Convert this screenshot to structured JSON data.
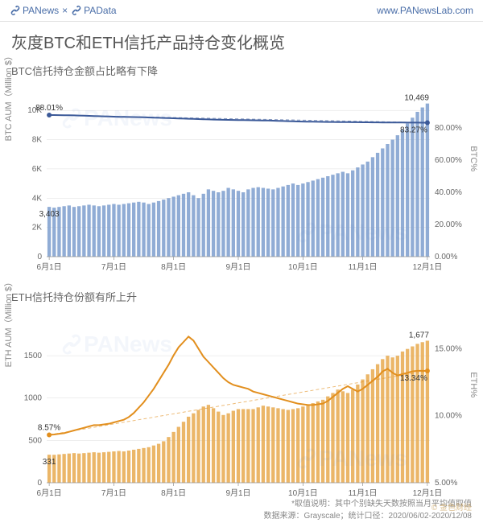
{
  "header": {
    "brand1": "PANews",
    "brand_sep": "×",
    "brand2": "PAData",
    "url": "www.PANewsLab.com"
  },
  "title": "灰度BTC和ETH信托产品持仓变化概览",
  "watermark_text": "PANews",
  "btc_chart": {
    "subtitle": "BTC信托持仓金额占比略有下降",
    "y_label": "BTC AUM（Million $）",
    "y2_label": "BTC%",
    "type": "bar+line",
    "bar_color": "#7d9ece",
    "line_color": "#3b5998",
    "trend_color": "#3b5998",
    "grid_color": "#dddddd",
    "text_color": "#666666",
    "y_ticks": [
      0,
      "2K",
      "4K",
      "6K",
      "8K",
      "10K"
    ],
    "y_max": 11000,
    "y2_ticks": [
      "0.00%",
      "20.00%",
      "40.00%",
      "60.00%",
      "80.00%"
    ],
    "y2_max": 100,
    "x_ticks": [
      "6月1日",
      "7月1日",
      "8月1日",
      "9月1日",
      "10月1日",
      "11月1日",
      "12月1日"
    ],
    "start_label_bar": "3,403",
    "end_label_bar": "10,469",
    "start_label_line": "88.01%",
    "end_label_line": "83.27%",
    "bars": [
      3403,
      3350,
      3400,
      3450,
      3500,
      3400,
      3450,
      3500,
      3550,
      3500,
      3450,
      3500,
      3550,
      3600,
      3550,
      3600,
      3650,
      3700,
      3750,
      3700,
      3600,
      3700,
      3800,
      3900,
      4000,
      4100,
      4200,
      4300,
      4400,
      4200,
      4000,
      4300,
      4600,
      4500,
      4400,
      4500,
      4700,
      4600,
      4500,
      4400,
      4600,
      4700,
      4750,
      4700,
      4650,
      4600,
      4700,
      4800,
      4900,
      5000,
      4900,
      5000,
      5100,
      5200,
      5300,
      5400,
      5500,
      5600,
      5700,
      5800,
      5700,
      5900,
      6100,
      6300,
      6500,
      6800,
      7100,
      7400,
      7700,
      8000,
      8300,
      8700,
      9100,
      9500,
      9900,
      10200,
      10469
    ],
    "line": [
      88.01,
      88.0,
      87.95,
      87.9,
      87.85,
      87.8,
      87.7,
      87.6,
      87.5,
      87.4,
      87.3,
      87.2,
      87.1,
      87.0,
      86.9,
      86.85,
      86.8,
      86.75,
      86.7,
      86.6,
      86.5,
      86.4,
      86.3,
      86.2,
      86.1,
      86.0,
      85.9,
      85.8,
      85.7,
      85.6,
      85.5,
      85.4,
      85.3,
      85.2,
      85.1,
      85.05,
      85.0,
      84.95,
      84.9,
      84.85,
      84.8,
      84.75,
      84.7,
      84.65,
      84.6,
      84.5,
      84.4,
      84.3,
      84.2,
      84.1,
      84.0,
      83.95,
      83.9,
      83.85,
      83.8,
      83.75,
      83.7,
      83.7,
      83.65,
      83.6,
      83.6,
      83.55,
      83.55,
      83.5,
      83.5,
      83.45,
      83.45,
      83.4,
      83.4,
      83.4,
      83.35,
      83.35,
      83.3,
      83.3,
      83.3,
      83.28,
      83.27
    ]
  },
  "eth_chart": {
    "subtitle": "ETH信托持仓份额有所上升",
    "y_label": "ETH AUM（Million $）",
    "y2_label": "ETH%",
    "type": "bar+line",
    "bar_color": "#e8a94d",
    "line_color": "#e28f1e",
    "trend_color": "#e28f1e",
    "grid_color": "#dddddd",
    "text_color": "#666666",
    "y_ticks": [
      0,
      500,
      1000,
      1500
    ],
    "y_max": 1900,
    "y2_ticks": [
      "5.00%",
      "10.00%",
      "15.00%"
    ],
    "y2_min": 5,
    "y2_max": 17,
    "x_ticks": [
      "6月1日",
      "7月1日",
      "8月1日",
      "9月1日",
      "10月1日",
      "11月1日",
      "12月1日"
    ],
    "start_label_bar": "331",
    "end_label_bar": "1,677",
    "start_label_line": "8.57%",
    "end_label_line": "13.34%",
    "bars": [
      331,
      330,
      335,
      340,
      345,
      350,
      345,
      350,
      355,
      360,
      355,
      360,
      365,
      370,
      375,
      370,
      380,
      390,
      400,
      410,
      420,
      440,
      460,
      490,
      540,
      600,
      660,
      720,
      780,
      820,
      860,
      900,
      920,
      880,
      840,
      800,
      820,
      850,
      870,
      870,
      870,
      870,
      890,
      910,
      900,
      890,
      880,
      870,
      860,
      870,
      880,
      900,
      920,
      940,
      960,
      980,
      1020,
      1060,
      1100,
      1080,
      1060,
      1100,
      1160,
      1220,
      1280,
      1340,
      1400,
      1460,
      1500,
      1480,
      1500,
      1550,
      1580,
      1610,
      1640,
      1660,
      1677
    ],
    "line": [
      8.57,
      8.6,
      8.65,
      8.7,
      8.8,
      8.9,
      9.0,
      9.1,
      9.2,
      9.3,
      9.3,
      9.35,
      9.4,
      9.5,
      9.6,
      9.7,
      9.9,
      10.2,
      10.6,
      11.0,
      11.5,
      12.0,
      12.6,
      13.2,
      13.8,
      14.5,
      15.1,
      15.5,
      15.9,
      15.6,
      15.0,
      14.4,
      14.0,
      13.6,
      13.2,
      12.8,
      12.5,
      12.3,
      12.2,
      12.1,
      12.0,
      11.8,
      11.7,
      11.6,
      11.5,
      11.4,
      11.3,
      11.2,
      11.1,
      11.0,
      10.9,
      10.85,
      10.8,
      10.8,
      10.85,
      10.9,
      11.1,
      11.4,
      11.7,
      12.0,
      12.2,
      12.0,
      11.8,
      12.0,
      12.3,
      12.6,
      12.9,
      13.3,
      13.5,
      13.2,
      13.0,
      13.1,
      13.2,
      13.3,
      13.35,
      13.35,
      13.34
    ]
  },
  "footer": {
    "note": "*取值说明：其中个别缺失天数按照当月平均值取值",
    "source": "数据来源：Grayscale；统计口径：2020/06/02-2020/12/08"
  },
  "corner_badge": "© 金色财经"
}
